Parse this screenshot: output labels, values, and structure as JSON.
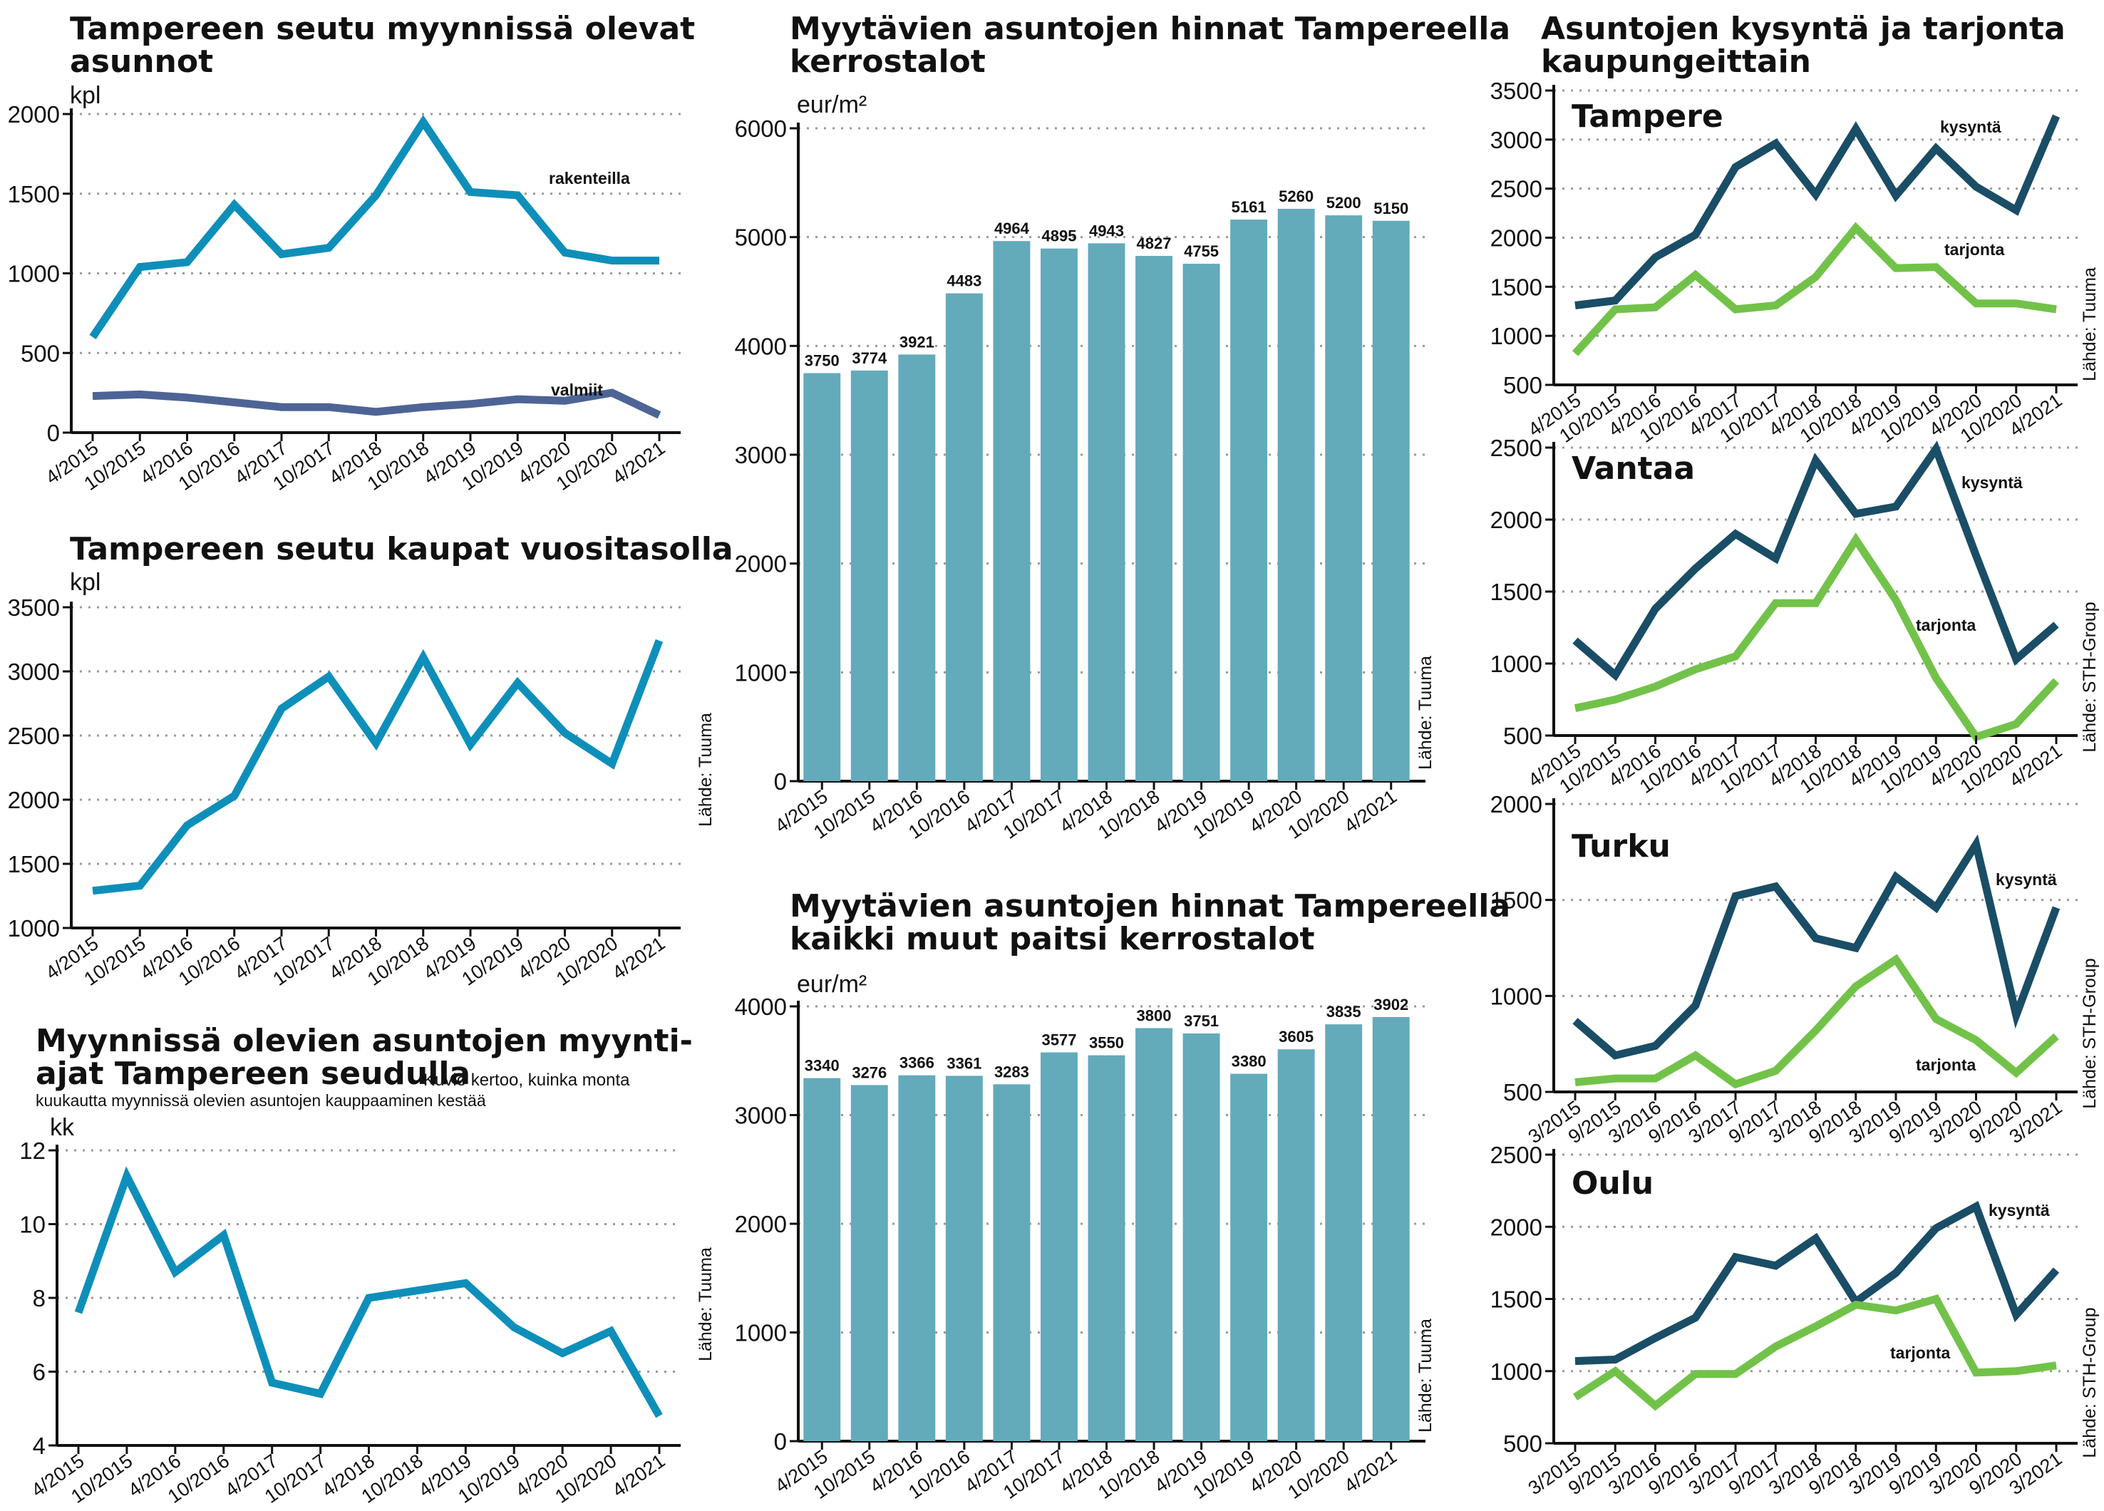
{
  "chart_data": [
    {
      "id": "c1",
      "type": "line",
      "title": [
        "Tampereen seutu myynnissä olevat",
        "asunnot"
      ],
      "ylabel": "kpl",
      "source": "",
      "ylim": [
        0,
        2000
      ],
      "yticks": [
        0,
        500,
        1000,
        1500,
        2000
      ],
      "categories": [
        "4/2015",
        "10/2015",
        "4/2016",
        "10/2016",
        "4/2017",
        "10/2017",
        "4/2018",
        "10/2018",
        "4/2019",
        "10/2019",
        "4/2020",
        "10/2020",
        "4/2021"
      ],
      "series": [
        {
          "name": "rakenteilla",
          "color": "#0e8fba",
          "values": [
            600,
            1040,
            1070,
            1430,
            1120,
            1160,
            1490,
            1950,
            1510,
            1490,
            1130,
            1080,
            1080
          ]
        },
        {
          "name": "valmiit",
          "color": "#4e6496",
          "values": [
            230,
            240,
            220,
            190,
            160,
            160,
            130,
            160,
            180,
            210,
            200,
            250,
            110
          ]
        }
      ]
    },
    {
      "id": "c2",
      "type": "line",
      "title": [
        "Tampereen seutu kaupat vuositasolla"
      ],
      "ylabel": "kpl",
      "source": "Lähde: Tuuma",
      "ylim": [
        1000,
        3500
      ],
      "yticks": [
        1000,
        1500,
        2000,
        2500,
        3000,
        3500
      ],
      "categories": [
        "4/2015",
        "10/2015",
        "4/2016",
        "10/2016",
        "4/2017",
        "10/2017",
        "4/2018",
        "10/2018",
        "4/2019",
        "10/2019",
        "4/2020",
        "10/2020",
        "4/2021"
      ],
      "series": [
        {
          "name": "",
          "color": "#0e8fba",
          "values": [
            1290,
            1330,
            1800,
            2030,
            2710,
            2960,
            2440,
            3110,
            2430,
            2910,
            2520,
            2280,
            3240
          ]
        }
      ]
    },
    {
      "id": "c3",
      "type": "line",
      "title": [
        "Myynnissä olevien asuntojen myynti-",
        "ajat Tampereen seudulla"
      ],
      "title_note": "Kuvio kertoo, kuinka monta",
      "subtitle": "kuukautta myynnissä olevien asuntojen kauppaaminen kestää",
      "ylabel": "kk",
      "source": "Lähde: Tuuma",
      "ylim": [
        4,
        12
      ],
      "yticks": [
        4,
        6,
        8,
        10,
        12
      ],
      "categories": [
        "4/2015",
        "10/2015",
        "4/2016",
        "10/2016",
        "4/2017",
        "10/2017",
        "4/2018",
        "10/2018",
        "4/2019",
        "10/2019",
        "4/2020",
        "10/2020",
        "4/2021"
      ],
      "series": [
        {
          "name": "",
          "color": "#0e8fba",
          "values": [
            7.6,
            11.3,
            8.7,
            9.7,
            5.7,
            5.4,
            8.0,
            8.2,
            8.4,
            7.2,
            6.5,
            7.1,
            4.8
          ]
        }
      ]
    },
    {
      "id": "c4",
      "type": "bar",
      "title": [
        "Myytävien asuntojen hinnat Tampereella",
        "kerrostalot"
      ],
      "ylabel": "eur/m²",
      "source": "Lähde: Tuuma",
      "ylim": [
        0,
        6000
      ],
      "yticks": [
        0,
        1000,
        2000,
        3000,
        4000,
        5000,
        6000
      ],
      "categories": [
        "4/2015",
        "10/2015",
        "4/2016",
        "10/2016",
        "4/2017",
        "10/2017",
        "4/2018",
        "10/2018",
        "4/2019",
        "10/2019",
        "4/2020",
        "10/2020",
        "4/2021"
      ],
      "values": [
        3750,
        3774,
        3921,
        4483,
        4964,
        4895,
        4943,
        4827,
        4755,
        5161,
        5260,
        5200,
        5150
      ],
      "color": "#63aabb"
    },
    {
      "id": "c5",
      "type": "bar",
      "title": [
        "Myytävien asuntojen hinnat Tampereella",
        "kaikki muut paitsi kerrostalot"
      ],
      "ylabel": "eur/m²",
      "source": "Lähde: Tuuma",
      "ylim": [
        0,
        4000
      ],
      "yticks": [
        0,
        1000,
        2000,
        3000,
        4000
      ],
      "categories": [
        "4/2015",
        "10/2015",
        "4/2016",
        "10/2016",
        "4/2017",
        "10/2017",
        "4/2018",
        "10/2018",
        "4/2019",
        "10/2019",
        "4/2020",
        "10/2020",
        "4/2021"
      ],
      "values": [
        3340,
        3276,
        3366,
        3361,
        3283,
        3577,
        3550,
        3800,
        3751,
        3380,
        3605,
        3835,
        3902
      ],
      "color": "#63aabb"
    },
    {
      "id": "c6",
      "type": "line",
      "title": [
        "Asuntojen kysyntä ja tarjonta",
        "kaupungeittain"
      ],
      "city": "Tampere",
      "source": "Lähde: Tuuma",
      "ylim": [
        500,
        3500
      ],
      "yticks": [
        500,
        1000,
        1500,
        2000,
        2500,
        3000,
        3500
      ],
      "categories": [
        "4/2015",
        "10/2015",
        "4/2016",
        "10/2016",
        "4/2017",
        "10/2017",
        "4/2018",
        "10/2018",
        "4/2019",
        "10/2019",
        "4/2020",
        "10/2020",
        "4/2021"
      ],
      "series": [
        {
          "name": "kysyntä",
          "color": "#1a4d66",
          "values": [
            1310,
            1360,
            1800,
            2030,
            2720,
            2960,
            2440,
            3110,
            2430,
            2910,
            2520,
            2280,
            3240
          ]
        },
        {
          "name": "tarjonta",
          "color": "#72c24a",
          "values": [
            820,
            1270,
            1290,
            1620,
            1270,
            1310,
            1600,
            2100,
            1690,
            1700,
            1330,
            1330,
            1270
          ]
        }
      ]
    },
    {
      "id": "c7",
      "type": "line",
      "city": "Vantaa",
      "source": "Lähde: STH-Group",
      "ylim": [
        500,
        2500
      ],
      "yticks": [
        500,
        1000,
        1500,
        2000,
        2500
      ],
      "categories": [
        "4/2015",
        "10/2015",
        "4/2016",
        "10/2016",
        "4/2017",
        "10/2017",
        "4/2018",
        "10/2018",
        "4/2019",
        "10/2019",
        "4/2020",
        "10/2020",
        "4/2021"
      ],
      "series": [
        {
          "name": "kysyntä",
          "color": "#1a4d66",
          "values": [
            1160,
            920,
            1380,
            1660,
            1900,
            1730,
            2410,
            2040,
            2090,
            2490,
            1750,
            1030,
            1270
          ]
        },
        {
          "name": "tarjonta",
          "color": "#72c24a",
          "values": [
            690,
            750,
            840,
            960,
            1050,
            1420,
            1420,
            1860,
            1440,
            900,
            490,
            580,
            880
          ]
        }
      ]
    },
    {
      "id": "c8",
      "type": "line",
      "city": "Turku",
      "source": "Lähde: STH-Group",
      "ylim": [
        500,
        2000
      ],
      "yticks": [
        500,
        1000,
        1500,
        2000
      ],
      "categories": [
        "3/2015",
        "9/2015",
        "3/2016",
        "9/2016",
        "3/2017",
        "9/2017",
        "3/2018",
        "9/2018",
        "3/2019",
        "9/2019",
        "3/2020",
        "9/2020",
        "3/2021"
      ],
      "series": [
        {
          "name": "kysyntä",
          "color": "#1a4d66",
          "values": [
            870,
            690,
            740,
            950,
            1520,
            1570,
            1300,
            1250,
            1620,
            1460,
            1790,
            900,
            1460
          ]
        },
        {
          "name": "tarjonta",
          "color": "#72c24a",
          "values": [
            550,
            570,
            570,
            690,
            540,
            610,
            820,
            1050,
            1190,
            880,
            770,
            600,
            790
          ]
        }
      ]
    },
    {
      "id": "c9",
      "type": "line",
      "city": "Oulu",
      "source": "Lähde: STH-Group",
      "ylim": [
        500,
        2500
      ],
      "yticks": [
        500,
        1000,
        1500,
        2000,
        2500
      ],
      "categories": [
        "3/2015",
        "9/2015",
        "3/2016",
        "9/2016",
        "3/2017",
        "9/2017",
        "3/2018",
        "9/2018",
        "3/2019",
        "9/2019",
        "3/2020",
        "9/2020",
        "3/2021"
      ],
      "series": [
        {
          "name": "kysyntä",
          "color": "#1a4d66",
          "values": [
            1070,
            1080,
            1230,
            1370,
            1790,
            1730,
            1920,
            1480,
            1680,
            1990,
            2140,
            1390,
            1700
          ]
        },
        {
          "name": "tarjonta",
          "color": "#72c24a",
          "values": [
            820,
            1000,
            760,
            980,
            980,
            1170,
            1310,
            1460,
            1420,
            1500,
            990,
            1000,
            1040
          ]
        }
      ]
    }
  ]
}
